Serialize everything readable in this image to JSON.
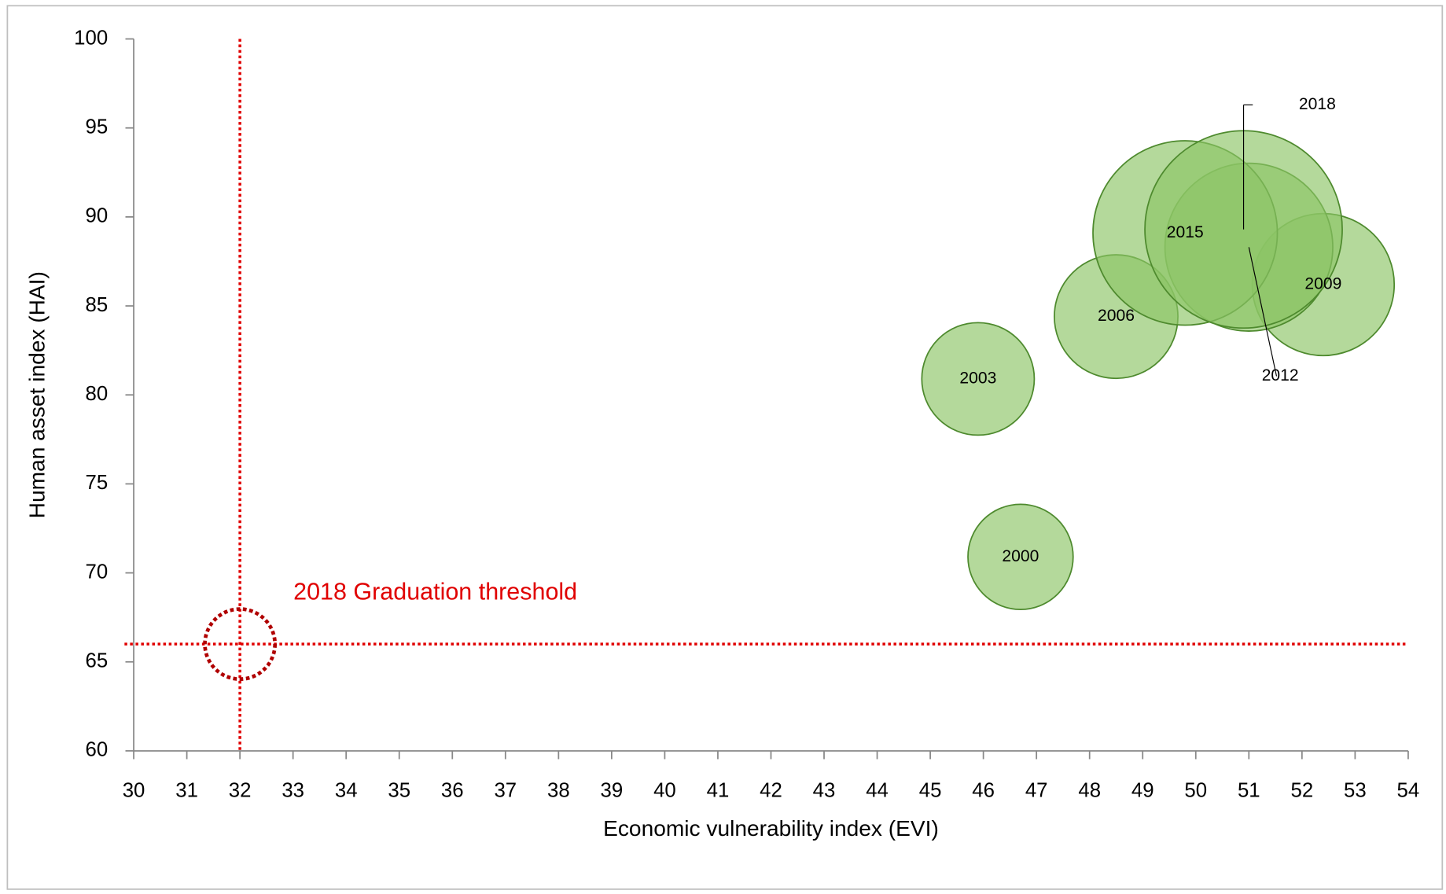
{
  "chart_data": {
    "type": "bubble",
    "x_label": "Economic vulnerability index (EVI)",
    "y_label": "Human asset index (HAI)",
    "labels": [
      "2000",
      "2003",
      "2006",
      "2009",
      "2012",
      "2015",
      "2018"
    ],
    "x": [
      46.7,
      45.9,
      48.5,
      52.4,
      51.0,
      49.8,
      50.9
    ],
    "values": [
      70.9,
      80.9,
      84.4,
      86.2,
      88.3,
      89.1,
      89.3
    ],
    "sizes": [
      28.4,
      32.5,
      39.2,
      51.8,
      72.3,
      87.3,
      100
    ],
    "color": "#8cc465",
    "edge_color": "#4e8a2e",
    "xlim": [
      30,
      54
    ],
    "xticks": [
      30,
      31,
      32,
      33,
      34,
      35,
      36,
      37,
      38,
      39,
      40,
      41,
      42,
      43,
      44,
      45,
      46,
      47,
      48,
      49,
      50,
      51,
      52,
      53,
      54
    ],
    "ylim": [
      60,
      100
    ],
    "yticks": [
      60,
      65,
      70,
      75,
      80,
      85,
      90,
      95,
      100
    ],
    "grid": false,
    "threshold": {
      "label": "2018 Graduation threshold",
      "x": 32,
      "y": 66,
      "color": "#e00000"
    }
  }
}
